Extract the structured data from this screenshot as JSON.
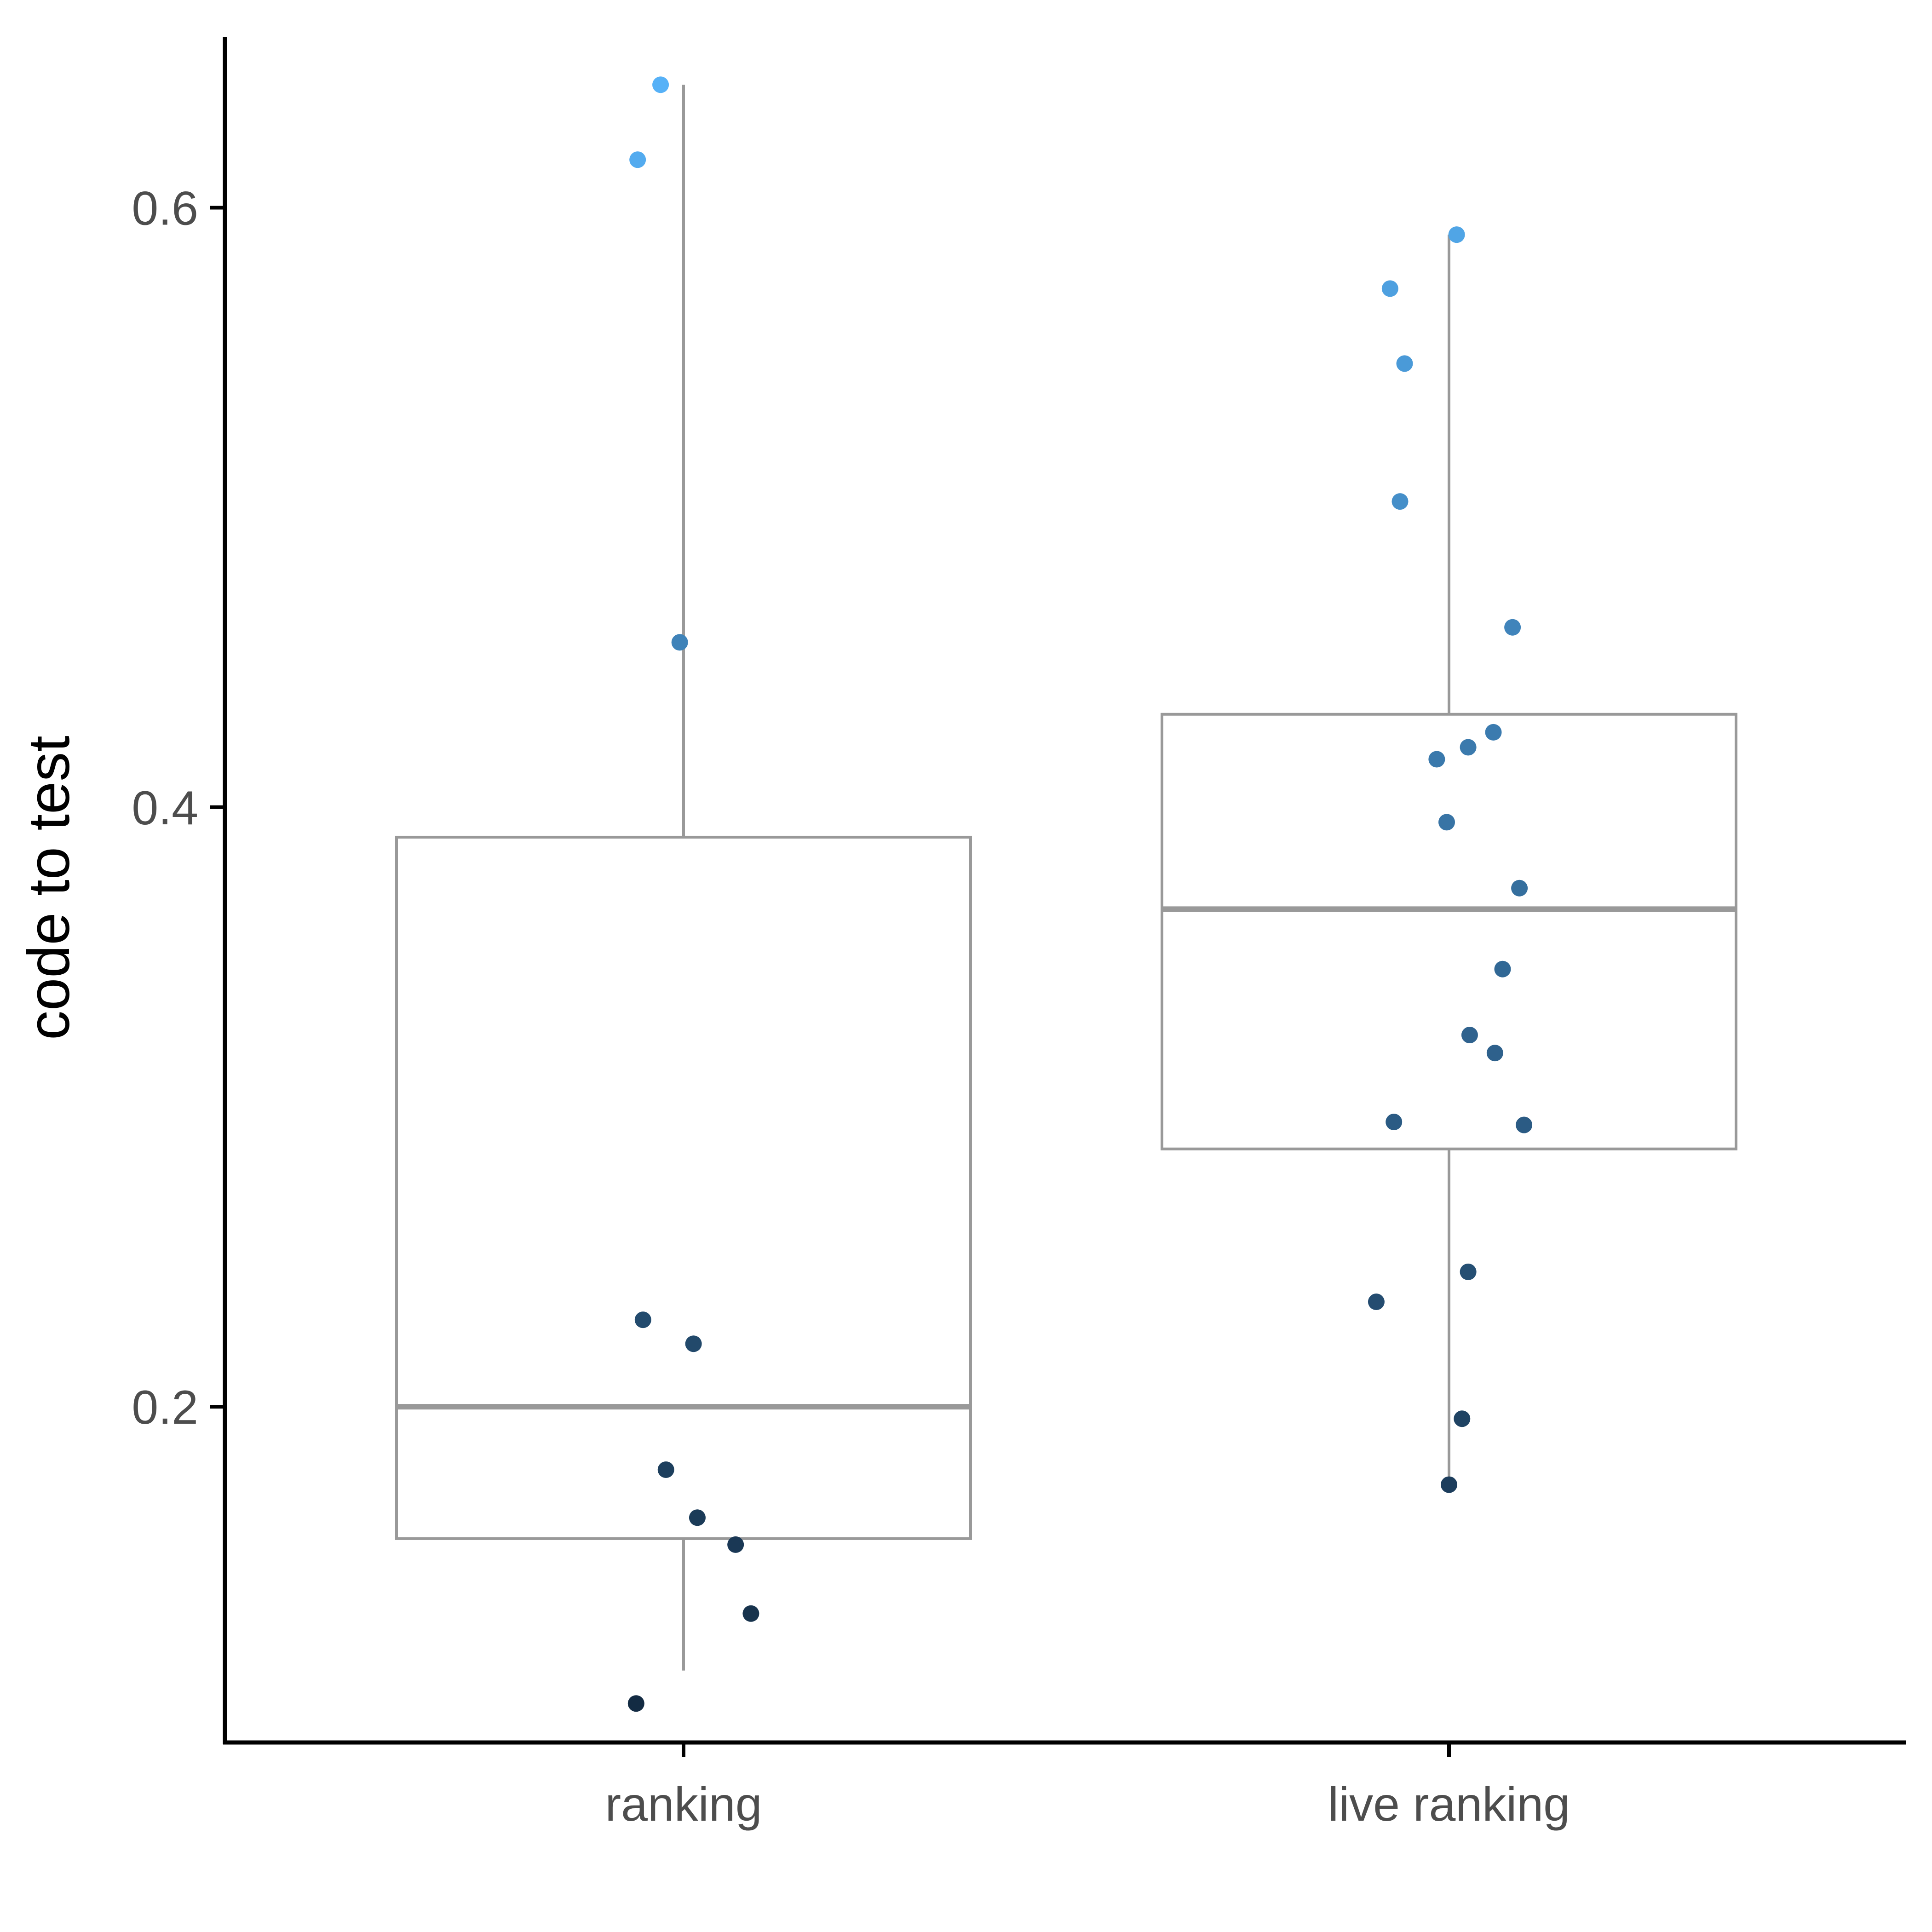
{
  "chart_data": {
    "type": "boxplot",
    "title": "",
    "xlabel": "",
    "ylabel": "code to test",
    "ylim": [
      0.088,
      0.657
    ],
    "y_ticks": [
      0.2,
      0.4,
      0.6
    ],
    "y_tick_labels": [
      "0.2",
      "0.4",
      "0.6"
    ],
    "categories": [
      "ranking",
      "live ranking"
    ],
    "grid": false,
    "legend": "none",
    "colors": {
      "box_stroke": "#999999",
      "axis": "#000000",
      "point_low": "#132b43",
      "point_high": "#56b1f7"
    },
    "boxes": [
      {
        "category": "ranking",
        "whisker_low": 0.112,
        "q1": 0.156,
        "median": 0.2,
        "q3": 0.39,
        "whisker_high": 0.641
      },
      {
        "category": "live ranking",
        "whisker_low": 0.173,
        "q1": 0.286,
        "median": 0.366,
        "q3": 0.431,
        "whisker_high": 0.591
      }
    ],
    "points": [
      {
        "category": "ranking",
        "offset": -0.03,
        "y": 0.641
      },
      {
        "category": "ranking",
        "offset": -0.06,
        "y": 0.616
      },
      {
        "category": "ranking",
        "offset": -0.005,
        "y": 0.455
      },
      {
        "category": "ranking",
        "offset": -0.053,
        "y": 0.229
      },
      {
        "category": "ranking",
        "offset": 0.013,
        "y": 0.221
      },
      {
        "category": "ranking",
        "offset": -0.023,
        "y": 0.179
      },
      {
        "category": "ranking",
        "offset": 0.018,
        "y": 0.163
      },
      {
        "category": "ranking",
        "offset": 0.068,
        "y": 0.154
      },
      {
        "category": "ranking",
        "offset": 0.088,
        "y": 0.131
      },
      {
        "category": "ranking",
        "offset": -0.062,
        "y": 0.101
      },
      {
        "category": "live ranking",
        "offset": 0.01,
        "y": 0.591
      },
      {
        "category": "live ranking",
        "offset": -0.077,
        "y": 0.573
      },
      {
        "category": "live ranking",
        "offset": -0.058,
        "y": 0.548
      },
      {
        "category": "live ranking",
        "offset": -0.064,
        "y": 0.502
      },
      {
        "category": "live ranking",
        "offset": 0.083,
        "y": 0.46
      },
      {
        "category": "live ranking",
        "offset": 0.058,
        "y": 0.425
      },
      {
        "category": "live ranking",
        "offset": 0.025,
        "y": 0.42
      },
      {
        "category": "live ranking",
        "offset": -0.016,
        "y": 0.416
      },
      {
        "category": "live ranking",
        "offset": -0.003,
        "y": 0.395
      },
      {
        "category": "live ranking",
        "offset": 0.092,
        "y": 0.373
      },
      {
        "category": "live ranking",
        "offset": 0.07,
        "y": 0.346
      },
      {
        "category": "live ranking",
        "offset": 0.027,
        "y": 0.324
      },
      {
        "category": "live ranking",
        "offset": 0.06,
        "y": 0.318
      },
      {
        "category": "live ranking",
        "offset": -0.072,
        "y": 0.295
      },
      {
        "category": "live ranking",
        "offset": 0.098,
        "y": 0.294
      },
      {
        "category": "live ranking",
        "offset": 0.025,
        "y": 0.245
      },
      {
        "category": "live ranking",
        "offset": -0.095,
        "y": 0.235
      },
      {
        "category": "live ranking",
        "offset": 0.017,
        "y": 0.196
      },
      {
        "category": "live ranking",
        "offset": 0.0,
        "y": 0.174
      }
    ]
  }
}
